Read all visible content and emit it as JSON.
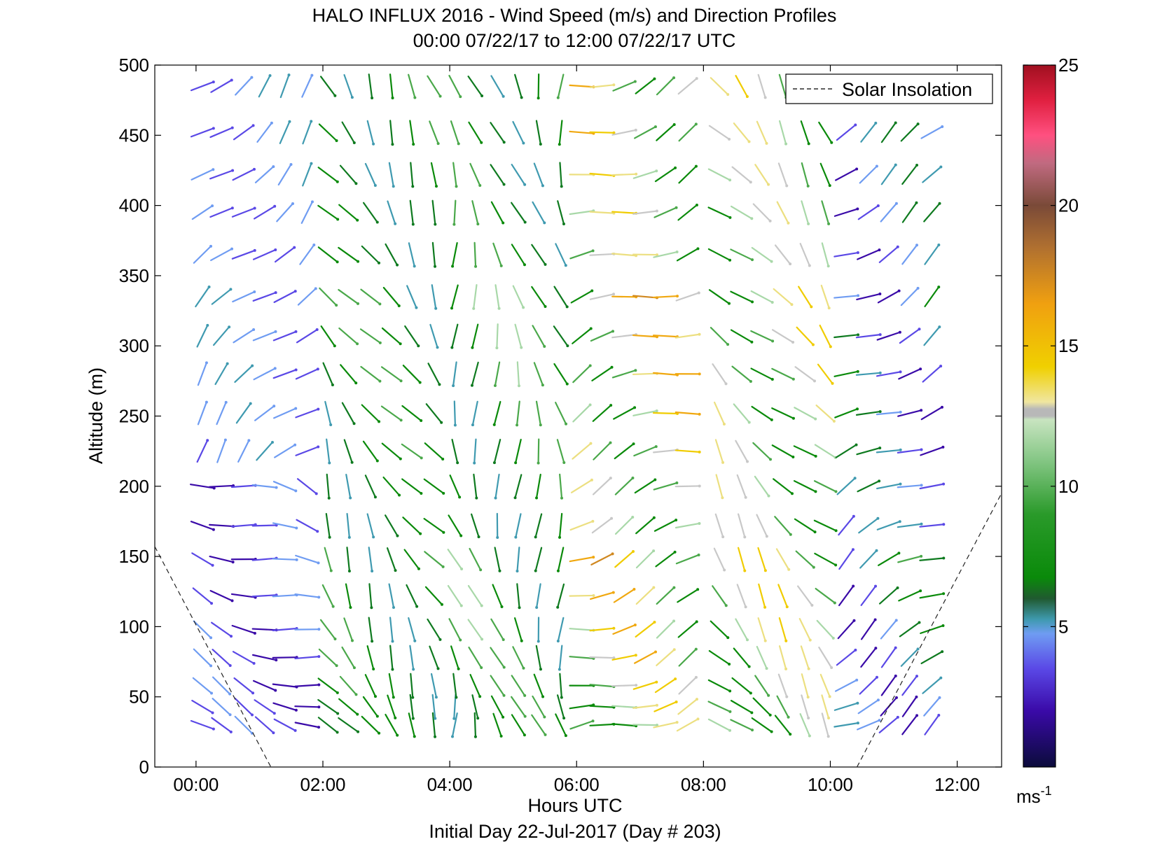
{
  "chart_data": {
    "type": "wind-barb-profile",
    "title": "HALO INFLUX 2016 - Wind Speed (m/s) and Direction Profiles",
    "subtitle": "00:00 07/22/17 to 12:00 07/22/17  UTC",
    "xlabel": "Hours UTC",
    "xlabel2": "Initial Day 22-Jul-2017 (Day # 203)",
    "ylabel": "Altitude (m)",
    "xlim": [
      -0.65,
      12.7
    ],
    "ylim": [
      0,
      500
    ],
    "xticks": [
      0,
      2,
      4,
      6,
      8,
      10,
      12
    ],
    "xtick_labels": [
      "00:00",
      "02:00",
      "04:00",
      "06:00",
      "08:00",
      "10:00",
      "12:00"
    ],
    "yticks": [
      0,
      50,
      100,
      150,
      200,
      250,
      300,
      350,
      400,
      450,
      500
    ],
    "ytick_labels": [
      "0",
      "50",
      "100",
      "150",
      "200",
      "250",
      "300",
      "350",
      "400",
      "450",
      "500"
    ],
    "legend": {
      "entries": [
        "Solar Insolation"
      ],
      "placement": "top-right"
    },
    "colorbar": {
      "range": [
        0,
        25
      ],
      "ticks": [
        5,
        10,
        15,
        20,
        25
      ],
      "tick_labels": [
        "5",
        "10",
        "15",
        "20",
        "25"
      ],
      "unit_base": "ms",
      "unit_exp": "-1",
      "colors": [
        "#0b0b3b",
        "#3a0aa8",
        "#5a48e6",
        "#6f9cf2",
        "#3f9ab0",
        "#0e7a1f",
        "#0a8a0a",
        "#4aa84a",
        "#a8d8a8",
        "#c8c8c8",
        "#ecdf80",
        "#f0cc00",
        "#f0a810",
        "#d08820",
        "#9a6430",
        "#804830",
        "#c07070",
        "#ff5080",
        "#e02040",
        "#a01020"
      ]
    },
    "solar_insolation": [
      {
        "x": [
          -0.65,
          1.18
        ],
        "y": [
          157,
          0
        ]
      },
      {
        "x": [
          10.42,
          12.7
        ],
        "y": [
          0,
          195
        ]
      }
    ],
    "profile_times_hr": [
      0.1,
      0.4,
      0.75,
      1.08,
      1.4,
      1.75,
      2.08,
      2.4,
      2.75,
      3.08,
      3.4,
      3.75,
      4.08,
      4.4,
      4.75,
      5.08,
      5.4,
      5.75,
      6.08,
      6.4,
      6.75,
      7.08,
      7.4,
      7.75,
      8.25,
      8.6,
      8.92,
      9.25,
      9.6,
      9.92,
      10.25,
      10.6,
      10.92,
      11.25,
      11.6
    ],
    "altitudes_m": [
      30,
      43,
      58,
      78,
      98,
      122,
      148,
      172,
      200,
      225,
      252,
      280,
      307,
      335,
      365,
      395,
      422,
      452,
      485
    ],
    "wind_direction_regimes": [
      {
        "hours": "00:00-02:00",
        "alt_range": "30-200 m",
        "direction_deg": 290,
        "speed_ms": [
          2,
          5
        ]
      },
      {
        "hours": "00:00-02:00",
        "alt_range": "200-500 m",
        "direction_deg": 225,
        "speed_ms": [
          3,
          6
        ]
      },
      {
        "hours": "02:00-04:00",
        "alt_range": "30-500 m",
        "direction_deg": 330,
        "speed_ms": [
          6,
          10
        ]
      },
      {
        "hours": "04:00-06:00",
        "alt_range": "30-500 m",
        "direction_deg": 350,
        "speed_ms": [
          6,
          11
        ]
      },
      {
        "hours": "06:00-08:00",
        "alt_range": "30-500 m",
        "direction_deg": 250,
        "speed_ms": [
          8,
          17
        ]
      },
      {
        "hours": "08:00-10:00",
        "alt_range": "30-500 m",
        "direction_deg": 320,
        "speed_ms": [
          8,
          15
        ]
      },
      {
        "hours": "10:00-12:00",
        "alt_range": "30-500 m",
        "direction_deg": 240,
        "speed_ms": [
          2,
          9
        ]
      }
    ]
  }
}
